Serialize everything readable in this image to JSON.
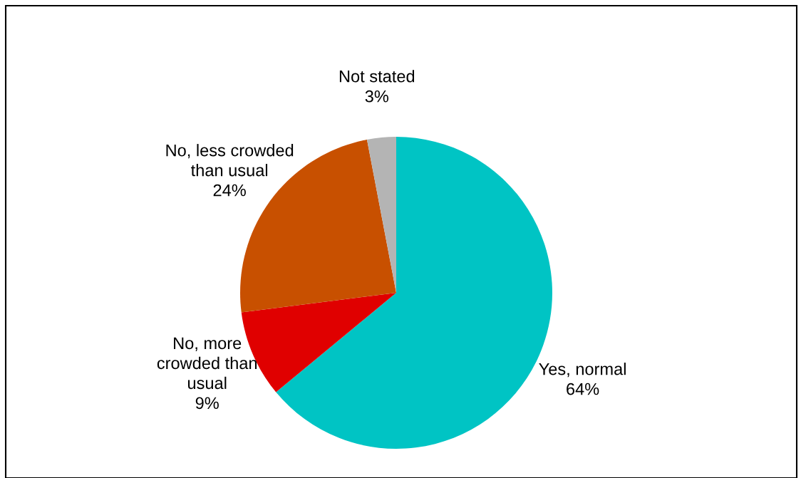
{
  "chart_data": {
    "type": "pie",
    "categories": [
      "Yes, normal",
      "No, more\ncrowded than\nusual",
      "No, less crowded\nthan usual",
      "Not stated"
    ],
    "values": [
      64,
      9,
      24,
      3
    ],
    "colors": [
      "#00c4c4",
      "#e00000",
      "#c85000",
      "#b4b4b4"
    ],
    "value_labels": [
      "64%",
      "9%",
      "24%",
      "3%"
    ]
  }
}
